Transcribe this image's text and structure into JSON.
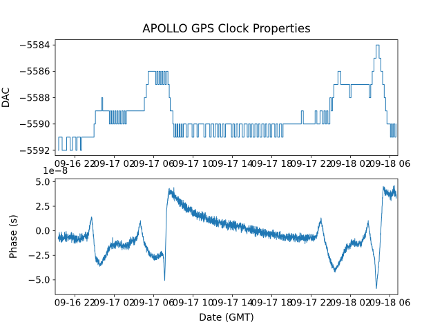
{
  "title": "APOLLO GPS Clock Properties",
  "accent_color": "#1f77b4",
  "chart_data": [
    {
      "type": "line",
      "name": "dac",
      "title": "APOLLO GPS Clock Properties",
      "ylabel": "DAC",
      "draw_style": "steps-post",
      "line_color": "#1f77b4",
      "grid": false,
      "legend": null,
      "x_unit": "hours since 09-16 20:00 GMT",
      "xlim": [
        0,
        34.8
      ],
      "ylim": [
        -5592.4,
        -5583.6
      ],
      "ytick_values": [
        -5584,
        -5586,
        -5588,
        -5590,
        -5592
      ],
      "ytick_labels": [
        "−5584",
        "−5586",
        "−5588",
        "−5590",
        "−5592"
      ],
      "xtick_values": [
        2,
        6,
        10,
        14,
        18,
        22,
        26,
        30,
        34
      ],
      "xtick_labels": [
        "09-16 22",
        "09-17 02",
        "09-17 06",
        "09-17 10",
        "09-17 14",
        "09-17 18",
        "09-17 22",
        "09-18 02",
        "09-18 06"
      ],
      "points": [
        [
          0.3,
          -5592
        ],
        [
          0.35,
          -5591
        ],
        [
          0.7,
          -5592
        ],
        [
          1.16,
          -5591
        ],
        [
          1.51,
          -5592
        ],
        [
          1.75,
          -5591
        ],
        [
          2.1,
          -5592
        ],
        [
          2.21,
          -5591
        ],
        [
          2.56,
          -5592
        ],
        [
          2.68,
          -5591
        ],
        [
          3.94,
          -5590
        ],
        [
          4.08,
          -5589
        ],
        [
          4.72,
          -5588
        ],
        [
          4.82,
          -5589
        ],
        [
          5.5,
          -5590
        ],
        [
          5.62,
          -5589
        ],
        [
          5.72,
          -5590
        ],
        [
          5.84,
          -5589
        ],
        [
          5.94,
          -5590
        ],
        [
          6.06,
          -5589
        ],
        [
          6.16,
          -5590
        ],
        [
          6.28,
          -5589
        ],
        [
          6.38,
          -5590
        ],
        [
          6.52,
          -5589
        ],
        [
          6.62,
          -5590
        ],
        [
          6.76,
          -5589
        ],
        [
          6.88,
          -5590
        ],
        [
          7.0,
          -5589
        ],
        [
          7.1,
          -5590
        ],
        [
          7.22,
          -5589
        ],
        [
          9.05,
          -5588
        ],
        [
          9.25,
          -5587
        ],
        [
          9.45,
          -5586
        ],
        [
          10.2,
          -5587
        ],
        [
          10.32,
          -5586
        ],
        [
          10.44,
          -5587
        ],
        [
          10.56,
          -5586
        ],
        [
          10.68,
          -5587
        ],
        [
          10.8,
          -5586
        ],
        [
          10.92,
          -5587
        ],
        [
          11.04,
          -5586
        ],
        [
          11.16,
          -5587
        ],
        [
          11.28,
          -5586
        ],
        [
          11.45,
          -5587
        ],
        [
          11.58,
          -5588
        ],
        [
          11.68,
          -5589
        ],
        [
          11.95,
          -5590
        ],
        [
          12.05,
          -5591
        ],
        [
          12.18,
          -5590
        ],
        [
          12.26,
          -5591
        ],
        [
          12.38,
          -5590
        ],
        [
          12.46,
          -5591
        ],
        [
          12.6,
          -5590
        ],
        [
          12.68,
          -5591
        ],
        [
          12.82,
          -5590
        ],
        [
          12.9,
          -5591
        ],
        [
          13.02,
          -5590
        ],
        [
          13.3,
          -5591
        ],
        [
          13.48,
          -5590
        ],
        [
          13.9,
          -5591
        ],
        [
          14.08,
          -5590
        ],
        [
          14.4,
          -5591
        ],
        [
          14.54,
          -5590
        ],
        [
          15.1,
          -5591
        ],
        [
          15.28,
          -5590
        ],
        [
          15.7,
          -5591
        ],
        [
          15.84,
          -5590
        ],
        [
          16.1,
          -5591
        ],
        [
          16.24,
          -5590
        ],
        [
          16.5,
          -5591
        ],
        [
          16.62,
          -5590
        ],
        [
          16.8,
          -5591
        ],
        [
          16.98,
          -5590
        ],
        [
          17.14,
          -5591
        ],
        [
          17.3,
          -5590
        ],
        [
          17.9,
          -5591
        ],
        [
          18.04,
          -5590
        ],
        [
          18.2,
          -5591
        ],
        [
          18.38,
          -5590
        ],
        [
          18.56,
          -5591
        ],
        [
          18.7,
          -5590
        ],
        [
          19.0,
          -5591
        ],
        [
          19.18,
          -5590
        ],
        [
          19.5,
          -5591
        ],
        [
          19.64,
          -5590
        ],
        [
          19.8,
          -5591
        ],
        [
          19.94,
          -5590
        ],
        [
          20.1,
          -5591
        ],
        [
          20.28,
          -5590
        ],
        [
          20.5,
          -5591
        ],
        [
          20.64,
          -5590
        ],
        [
          20.8,
          -5591
        ],
        [
          20.98,
          -5590
        ],
        [
          21.2,
          -5591
        ],
        [
          21.34,
          -5590
        ],
        [
          21.5,
          -5591
        ],
        [
          21.68,
          -5590
        ],
        [
          21.84,
          -5591
        ],
        [
          22.0,
          -5590
        ],
        [
          22.3,
          -5591
        ],
        [
          22.44,
          -5590
        ],
        [
          22.6,
          -5591
        ],
        [
          22.78,
          -5590
        ],
        [
          23.0,
          -5591
        ],
        [
          23.14,
          -5590
        ],
        [
          25.0,
          -5589
        ],
        [
          25.2,
          -5590
        ],
        [
          26.4,
          -5589
        ],
        [
          26.58,
          -5590
        ],
        [
          26.9,
          -5589
        ],
        [
          27.14,
          -5590
        ],
        [
          27.3,
          -5589
        ],
        [
          27.44,
          -5590
        ],
        [
          27.56,
          -5589
        ],
        [
          27.7,
          -5590
        ],
        [
          27.9,
          -5588
        ],
        [
          28.04,
          -5589
        ],
        [
          28.16,
          -5588
        ],
        [
          28.3,
          -5587
        ],
        [
          28.72,
          -5586
        ],
        [
          29.0,
          -5587
        ],
        [
          29.9,
          -5588
        ],
        [
          30.05,
          -5587
        ],
        [
          31.9,
          -5588
        ],
        [
          32.05,
          -5587
        ],
        [
          32.2,
          -5586
        ],
        [
          32.38,
          -5585
        ],
        [
          32.6,
          -5584
        ],
        [
          32.9,
          -5585
        ],
        [
          33.08,
          -5586
        ],
        [
          33.26,
          -5587
        ],
        [
          33.42,
          -5588
        ],
        [
          33.56,
          -5589
        ],
        [
          33.7,
          -5590
        ],
        [
          34.05,
          -5591
        ],
        [
          34.15,
          -5590
        ],
        [
          34.25,
          -5591
        ],
        [
          34.35,
          -5590
        ],
        [
          34.5,
          -5591
        ],
        [
          34.62,
          -5590
        ],
        [
          34.65,
          -5590
        ]
      ]
    },
    {
      "type": "line",
      "name": "phase",
      "ylabel": "Phase (s)",
      "xlabel": "Date (GMT)",
      "offset_text": "1e−8",
      "line_color": "#1f77b4",
      "grid": false,
      "legend": null,
      "x_unit": "hours since 09-16 20:00 GMT",
      "y_unit": "1e-8 s",
      "xlim": [
        0,
        34.8
      ],
      "ylim": [
        -6.5,
        5.3
      ],
      "ytick_values": [
        5.0,
        2.5,
        0.0,
        -2.5,
        -5.0
      ],
      "ytick_labels": [
        "5.0",
        "2.5",
        "0.0",
        "−2.5",
        "−5.0"
      ],
      "xtick_values": [
        2,
        6,
        10,
        14,
        18,
        22,
        26,
        30,
        34
      ],
      "xtick_labels": [
        "09-16 22",
        "09-17 02",
        "09-17 06",
        "09-17 10",
        "09-17 14",
        "09-17 18",
        "09-17 22",
        "09-18 02",
        "09-18 06"
      ],
      "synthesis": {
        "n_points": 2600,
        "seed": 987654321,
        "note": "noisy line; anchors are [t_hours, mean, noise_amplitude] in 1e-8 s"
      },
      "anchors": [
        [
          0.3,
          -0.7,
          0.55
        ],
        [
          1.3,
          -0.6,
          0.55
        ],
        [
          2.3,
          -0.9,
          0.5
        ],
        [
          3.3,
          -0.5,
          0.5
        ],
        [
          3.7,
          1.4,
          0.2
        ],
        [
          4.1,
          -2.8,
          0.35
        ],
        [
          4.6,
          -3.5,
          0.3
        ],
        [
          5.1,
          -2.6,
          0.35
        ],
        [
          5.6,
          -1.5,
          0.4
        ],
        [
          6.4,
          -1.3,
          0.45
        ],
        [
          7.1,
          -1.6,
          0.4
        ],
        [
          7.8,
          -1.1,
          0.45
        ],
        [
          8.3,
          -0.8,
          0.45
        ],
        [
          8.65,
          0.9,
          0.25
        ],
        [
          9.0,
          -1.2,
          0.3
        ],
        [
          9.6,
          -2.4,
          0.35
        ],
        [
          10.3,
          -2.8,
          0.35
        ],
        [
          10.75,
          -2.3,
          0.3
        ],
        [
          11.0,
          -2.6,
          0.25
        ],
        [
          11.12,
          -5.2,
          0.12
        ],
        [
          11.3,
          2.0,
          0.5
        ],
        [
          11.55,
          4.1,
          0.4
        ],
        [
          12.3,
          3.3,
          0.5
        ],
        [
          13.0,
          2.6,
          0.5
        ],
        [
          14.0,
          1.9,
          0.5
        ],
        [
          15.5,
          1.2,
          0.5
        ],
        [
          17.5,
          0.6,
          0.5
        ],
        [
          19.0,
          0.3,
          0.5
        ],
        [
          21.0,
          -0.2,
          0.5
        ],
        [
          22.5,
          -0.45,
          0.45
        ],
        [
          24.0,
          -0.7,
          0.45
        ],
        [
          25.5,
          -0.75,
          0.45
        ],
        [
          26.5,
          -0.6,
          0.4
        ],
        [
          27.0,
          1.2,
          0.25
        ],
        [
          27.35,
          -0.9,
          0.3
        ],
        [
          28.0,
          -3.3,
          0.35
        ],
        [
          28.4,
          -4.0,
          0.3
        ],
        [
          28.9,
          -3.2,
          0.35
        ],
        [
          29.6,
          -1.7,
          0.4
        ],
        [
          30.3,
          -1.2,
          0.45
        ],
        [
          31.0,
          -1.4,
          0.4
        ],
        [
          31.45,
          -0.6,
          0.35
        ],
        [
          31.8,
          0.9,
          0.3
        ],
        [
          32.1,
          -1.3,
          0.3
        ],
        [
          32.45,
          -2.9,
          0.25
        ],
        [
          32.62,
          -5.9,
          0.12
        ],
        [
          32.9,
          -3.0,
          0.25
        ],
        [
          33.1,
          0.5,
          0.3
        ],
        [
          33.3,
          4.2,
          0.4
        ],
        [
          33.7,
          3.8,
          0.5
        ],
        [
          34.1,
          3.6,
          0.55
        ],
        [
          34.4,
          4.1,
          0.5
        ],
        [
          34.65,
          3.7,
          0.5
        ]
      ]
    }
  ]
}
